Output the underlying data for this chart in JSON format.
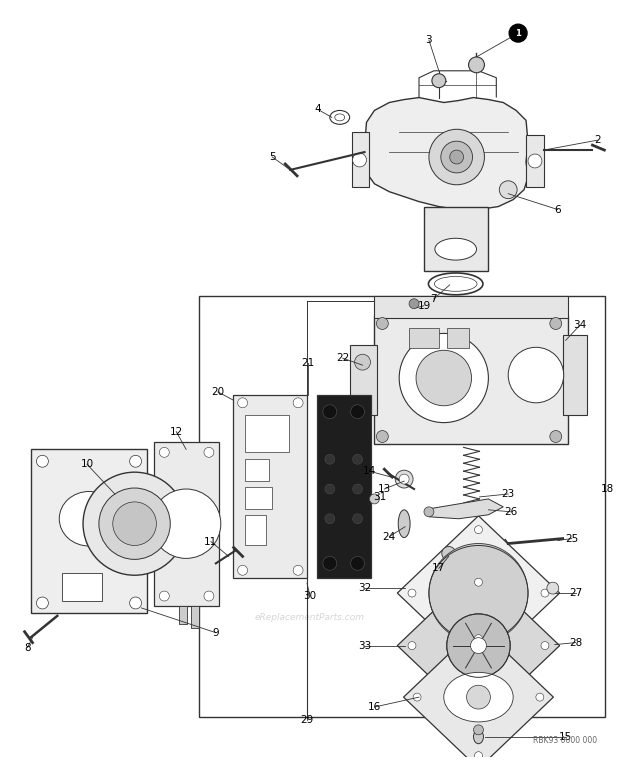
{
  "bg_color": "#ffffff",
  "fig_width": 6.2,
  "fig_height": 7.6,
  "dpi": 100,
  "watermark": "eReplacementParts.com",
  "ref_code": "RBK93 0000 000"
}
